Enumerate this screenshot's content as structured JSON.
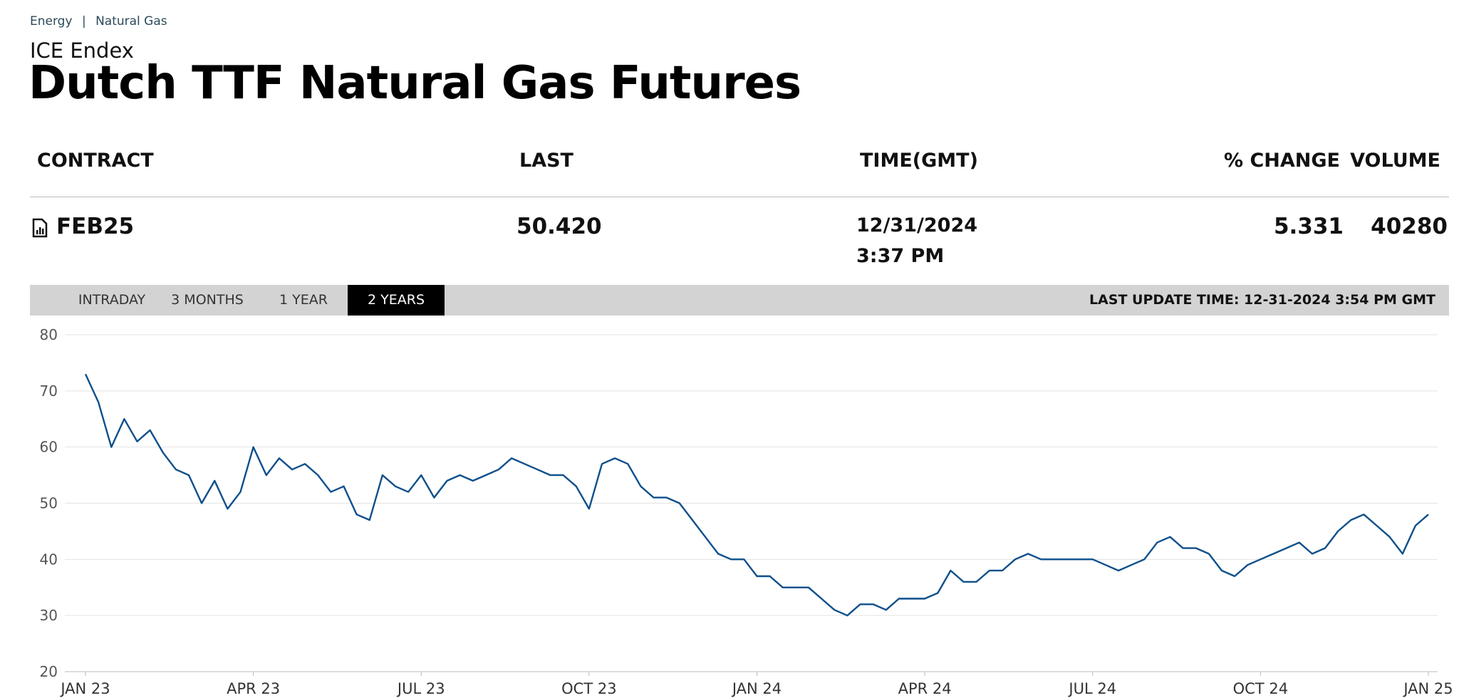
{
  "breadcrumb": [
    "Energy",
    "Natural Gas"
  ],
  "exchange": "ICE Endex",
  "title": "Dutch TTF Natural Gas Futures",
  "table": {
    "headers": [
      "CONTRACT",
      "LAST",
      "TIME(GMT)",
      "% CHANGE",
      "VOLUME"
    ],
    "rows": [
      {
        "contract": "FEB25",
        "last": "50.420",
        "date": "12/31/2024",
        "time": "3:37 PM",
        "change": "5.331",
        "volume": "40280"
      }
    ]
  },
  "tabs": [
    "INTRADAY",
    "3 MONTHS",
    "1 YEAR",
    "2 YEARS"
  ],
  "active_tab": 3,
  "last_update": "LAST UPDATE TIME: 12-31-2024 3:54 PM GMT",
  "chart_data": {
    "type": "line",
    "color": "#0d4f8b",
    "grid": true,
    "ylim": [
      20,
      80
    ],
    "yticks": [
      20,
      30,
      40,
      50,
      60,
      70,
      80
    ],
    "categories": [
      "JAN 23",
      null,
      null,
      null,
      null,
      null,
      null,
      null,
      null,
      null,
      null,
      null,
      null,
      "APR 23",
      null,
      null,
      null,
      null,
      null,
      null,
      null,
      null,
      null,
      null,
      null,
      null,
      "JUL 23",
      null,
      null,
      null,
      null,
      null,
      null,
      null,
      null,
      null,
      null,
      null,
      null,
      "OCT 23",
      null,
      null,
      null,
      null,
      null,
      null,
      null,
      null,
      null,
      null,
      null,
      null,
      "JAN 24",
      null,
      null,
      null,
      null,
      null,
      null,
      null,
      null,
      null,
      null,
      null,
      null,
      "APR 24",
      null,
      null,
      null,
      null,
      null,
      null,
      null,
      null,
      null,
      null,
      null,
      null,
      "JUL 24",
      null,
      null,
      null,
      null,
      null,
      null,
      null,
      null,
      null,
      null,
      null,
      null,
      "OCT 24",
      null,
      null,
      null,
      null,
      null,
      null,
      null,
      null,
      null,
      null,
      null,
      null,
      "JAN 25"
    ],
    "values": [
      73,
      68,
      60,
      65,
      61,
      63,
      59,
      56,
      55,
      50,
      54,
      49,
      52,
      60,
      55,
      58,
      56,
      57,
      55,
      52,
      53,
      48,
      47,
      55,
      53,
      52,
      55,
      51,
      54,
      55,
      54,
      55,
      56,
      58,
      57,
      56,
      55,
      55,
      53,
      49,
      57,
      58,
      57,
      53,
      51,
      51,
      50,
      47,
      44,
      41,
      40,
      40,
      37,
      37,
      35,
      35,
      35,
      33,
      31,
      30,
      32,
      32,
      31,
      33,
      33,
      33,
      34,
      38,
      36,
      36,
      38,
      38,
      40,
      41,
      40,
      40,
      40,
      40,
      40,
      39,
      38,
      39,
      40,
      43,
      44,
      42,
      42,
      41,
      38,
      37,
      39,
      40,
      41,
      42,
      43,
      41,
      42,
      45,
      47,
      48,
      46,
      44,
      41,
      46,
      48
    ]
  }
}
